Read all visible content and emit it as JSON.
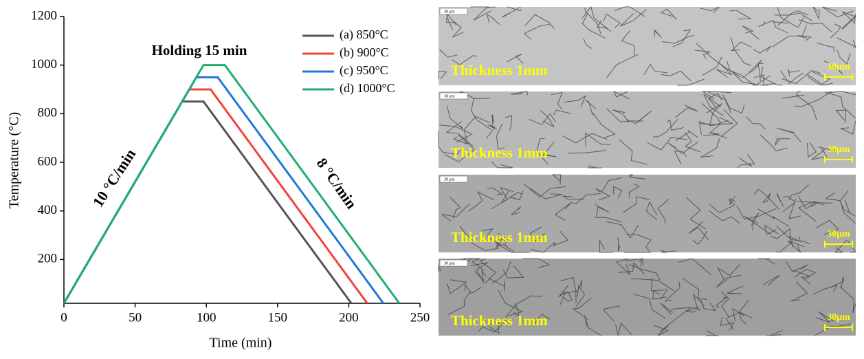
{
  "chart_data": {
    "type": "line",
    "xlabel": "Time (min)",
    "ylabel": "Temperature (°C)",
    "xlim": [
      0,
      250
    ],
    "xticks": [
      0,
      50,
      100,
      150,
      200,
      250
    ],
    "ylim": [
      20,
      1200
    ],
    "yticks": [
      200,
      400,
      600,
      800,
      1000,
      1200
    ],
    "grid": false,
    "legend": "upper right",
    "annotations": [
      "Holding 15 min",
      "10 °C/min",
      "8 °C/min"
    ],
    "series": [
      {
        "name": "(a) 850°C",
        "color": "#555555",
        "x": [
          0,
          83,
          98,
          201.8
        ],
        "values": [
          20,
          850,
          850,
          20
        ]
      },
      {
        "name": "(b) 900°C",
        "color": "#f0433a",
        "x": [
          0,
          88,
          103,
          213
        ],
        "values": [
          20,
          900,
          900,
          20
        ]
      },
      {
        "name": "(c) 950°C",
        "color": "#1e78d8",
        "x": [
          0,
          93,
          108,
          224.3
        ],
        "values": [
          20,
          950,
          950,
          20
        ]
      },
      {
        "name": "(d) 1000°C",
        "color": "#1fae6e",
        "x": [
          0,
          98,
          113,
          235.5
        ],
        "values": [
          20,
          1000,
          1000,
          20
        ]
      }
    ]
  },
  "micrographs": [
    {
      "tag": "30 μm",
      "label": "Thickness 1mm",
      "scale_bar": "30μm"
    },
    {
      "tag": "30 μm",
      "label": "Thickness 1mm",
      "scale_bar": "30μm"
    },
    {
      "tag": "30 μm",
      "label": "Thickness 1mm",
      "scale_bar": "30μm"
    },
    {
      "tag": "30 μm",
      "label": "Thickness 1mm",
      "scale_bar": "30μm"
    }
  ]
}
